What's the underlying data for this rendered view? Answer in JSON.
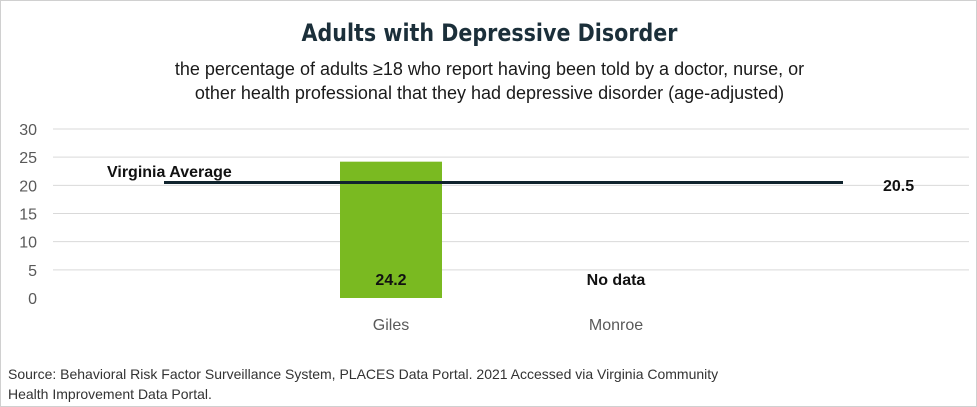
{
  "chart_data": {
    "type": "bar",
    "title": "Adults with Depressive Disorder",
    "subtitle_lines": [
      "the percentage of adults ≥18 who report having been told by a doctor, nurse, or",
      "other health professional that they had depressive disorder (age-adjusted)"
    ],
    "categories": [
      "Giles",
      "Monroe"
    ],
    "values": [
      24.2,
      null
    ],
    "data_labels": [
      "24.2",
      "No data"
    ],
    "ylim": [
      0,
      30
    ],
    "yticks": [
      0,
      5,
      10,
      15,
      20,
      25,
      30
    ],
    "xlabel": "",
    "ylabel": "",
    "grid": true,
    "reference_line": {
      "label": "Virginia Average",
      "value": 20.5,
      "value_label": "20.5"
    },
    "colors": {
      "bar": "#7aba21",
      "reference_line": "#10242e",
      "grid": "#d9d9d9",
      "title": "#1b2f3a"
    }
  },
  "source": {
    "lines": [
      "Source:  Behavioral Risk Factor Surveillance System, PLACES Data Portal. 2021 Accessed via Virginia Community",
      "Health Improvement Data Portal."
    ]
  }
}
